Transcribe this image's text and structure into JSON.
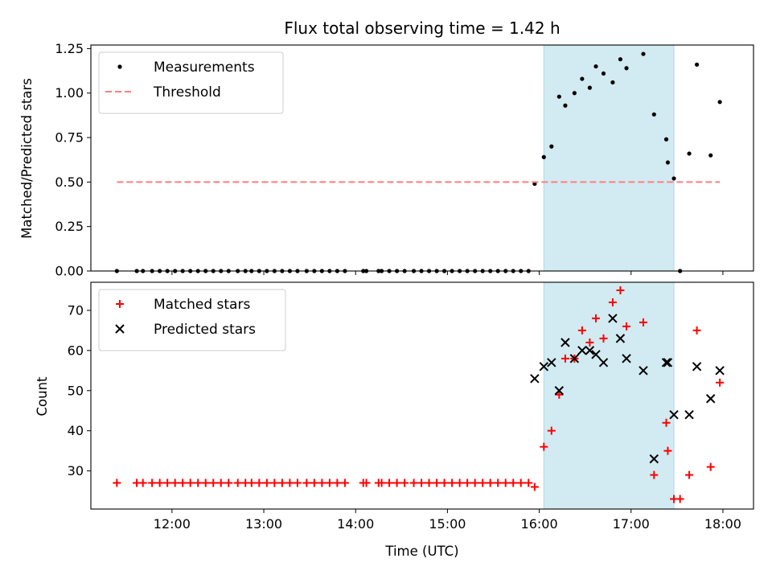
{
  "chart_data": [
    {
      "type": "scatter",
      "title": "Flux total observing time = 1.42 h",
      "ylabel": "Matched/Predicted stars",
      "xlim": [
        "11:07",
        "18:20"
      ],
      "ylim": [
        0,
        1.27
      ],
      "yticks": [
        "0.00",
        "0.25",
        "0.50",
        "0.75",
        "1.00",
        "1.25"
      ],
      "ytick_values": [
        0,
        0.25,
        0.5,
        0.75,
        1.0,
        1.25
      ],
      "highlight_span": {
        "x0": "16:03",
        "x1": "17:28",
        "color": "#add8e6"
      },
      "legend_position": "upper-left",
      "series": [
        {
          "name": "Measurements",
          "marker": "dot",
          "color": "#000000",
          "x": [
            "11:24",
            "11:37",
            "11:41",
            "11:47",
            "11:52",
            "11:57",
            "12:02",
            "12:07",
            "12:12",
            "12:17",
            "12:22",
            "12:27",
            "12:32",
            "12:37",
            "12:43",
            "12:48",
            "12:52",
            "12:57",
            "13:02",
            "13:07",
            "13:12",
            "13:17",
            "13:22",
            "13:28",
            "13:33",
            "13:38",
            "13:43",
            "13:48",
            "13:53",
            "14:05",
            "14:07",
            "14:15",
            "14:17",
            "14:22",
            "14:27",
            "14:32",
            "14:38",
            "14:43",
            "14:48",
            "14:53",
            "14:58",
            "15:03",
            "15:08",
            "15:13",
            "15:18",
            "15:23",
            "15:28",
            "15:33",
            "15:38",
            "15:43",
            "15:48",
            "15:53",
            "15:57",
            "16:03",
            "16:08",
            "16:13",
            "16:17",
            "16:23",
            "16:28",
            "16:33",
            "16:37",
            "16:42",
            "16:48",
            "16:53",
            "16:57",
            "17:08",
            "17:15",
            "17:23",
            "17:24",
            "17:28",
            "17:32",
            "17:38",
            "17:43",
            "17:52",
            "17:58"
          ],
          "y": [
            0,
            0,
            0,
            0,
            0,
            0,
            0,
            0,
            0,
            0,
            0,
            0,
            0,
            0,
            0,
            0,
            0,
            0,
            0,
            0,
            0,
            0,
            0,
            0,
            0,
            0,
            0,
            0,
            0,
            0,
            0,
            0,
            0,
            0,
            0,
            0,
            0,
            0,
            0,
            0,
            0,
            0,
            0,
            0,
            0,
            0,
            0,
            0,
            0,
            0,
            0,
            0,
            0.49,
            0.64,
            0.7,
            0.98,
            0.93,
            1.0,
            1.08,
            1.03,
            1.15,
            1.11,
            1.06,
            1.19,
            1.14,
            1.22,
            0.88,
            0.74,
            0.61,
            0.52,
            0,
            0.66,
            1.16,
            0.65,
            0.95
          ]
        },
        {
          "name": "Threshold",
          "marker": "dashed-line",
          "color": "#ff7f7f",
          "x": [
            "11:24",
            "17:58"
          ],
          "y": [
            0.5,
            0.5
          ]
        }
      ]
    },
    {
      "type": "scatter",
      "ylabel": "Count",
      "xlabel": "Time (UTC)",
      "xlim": [
        "11:07",
        "18:20"
      ],
      "xticks": [
        "12:00",
        "13:00",
        "14:00",
        "15:00",
        "16:00",
        "17:00",
        "18:00"
      ],
      "ylim": [
        20.5,
        77
      ],
      "yticks": [
        "30",
        "40",
        "50",
        "60",
        "70"
      ],
      "ytick_values": [
        30,
        40,
        50,
        60,
        70
      ],
      "highlight_span": {
        "x0": "16:03",
        "x1": "17:28",
        "color": "#add8e6"
      },
      "legend_position": "upper-left",
      "series": [
        {
          "name": "Matched stars",
          "marker": "plus",
          "color": "#ff0000",
          "x": [
            "11:24",
            "11:37",
            "11:41",
            "11:47",
            "11:52",
            "11:57",
            "12:02",
            "12:07",
            "12:12",
            "12:17",
            "12:22",
            "12:27",
            "12:32",
            "12:37",
            "12:43",
            "12:48",
            "12:52",
            "12:57",
            "13:02",
            "13:07",
            "13:12",
            "13:17",
            "13:22",
            "13:28",
            "13:33",
            "13:38",
            "13:43",
            "13:48",
            "13:53",
            "14:05",
            "14:07",
            "14:15",
            "14:17",
            "14:22",
            "14:27",
            "14:32",
            "14:38",
            "14:43",
            "14:48",
            "14:53",
            "14:58",
            "15:03",
            "15:08",
            "15:13",
            "15:18",
            "15:23",
            "15:28",
            "15:33",
            "15:38",
            "15:43",
            "15:48",
            "15:53",
            "15:57",
            "16:03",
            "16:08",
            "16:13",
            "16:17",
            "16:23",
            "16:28",
            "16:33",
            "16:37",
            "16:42",
            "16:48",
            "16:53",
            "16:57",
            "17:08",
            "17:15",
            "17:23",
            "17:24",
            "17:28",
            "17:32",
            "17:38",
            "17:43",
            "17:52",
            "17:58"
          ],
          "y": [
            27,
            27,
            27,
            27,
            27,
            27,
            27,
            27,
            27,
            27,
            27,
            27,
            27,
            27,
            27,
            27,
            27,
            27,
            27,
            27,
            27,
            27,
            27,
            27,
            27,
            27,
            27,
            27,
            27,
            27,
            27,
            27,
            27,
            27,
            27,
            27,
            27,
            27,
            27,
            27,
            27,
            27,
            27,
            27,
            27,
            27,
            27,
            27,
            27,
            27,
            27,
            27,
            26,
            36,
            40,
            49,
            58,
            58,
            65,
            62,
            68,
            63,
            72,
            75,
            66,
            67,
            29,
            42,
            35,
            23,
            23,
            29,
            65,
            31,
            52
          ]
        },
        {
          "name": "Predicted stars",
          "marker": "x",
          "color": "#000000",
          "x": [
            "15:57",
            "16:03",
            "16:08",
            "16:13",
            "16:17",
            "16:23",
            "16:28",
            "16:33",
            "16:37",
            "16:42",
            "16:48",
            "16:53",
            "16:57",
            "17:08",
            "17:15",
            "17:23",
            "17:24",
            "17:28",
            "17:38",
            "17:43",
            "17:52",
            "17:58"
          ],
          "y": [
            53,
            56,
            57,
            50,
            62,
            58,
            60,
            60,
            59,
            57,
            68,
            63,
            58,
            55,
            33,
            57,
            57,
            44,
            44,
            56,
            48,
            55
          ]
        }
      ]
    }
  ]
}
